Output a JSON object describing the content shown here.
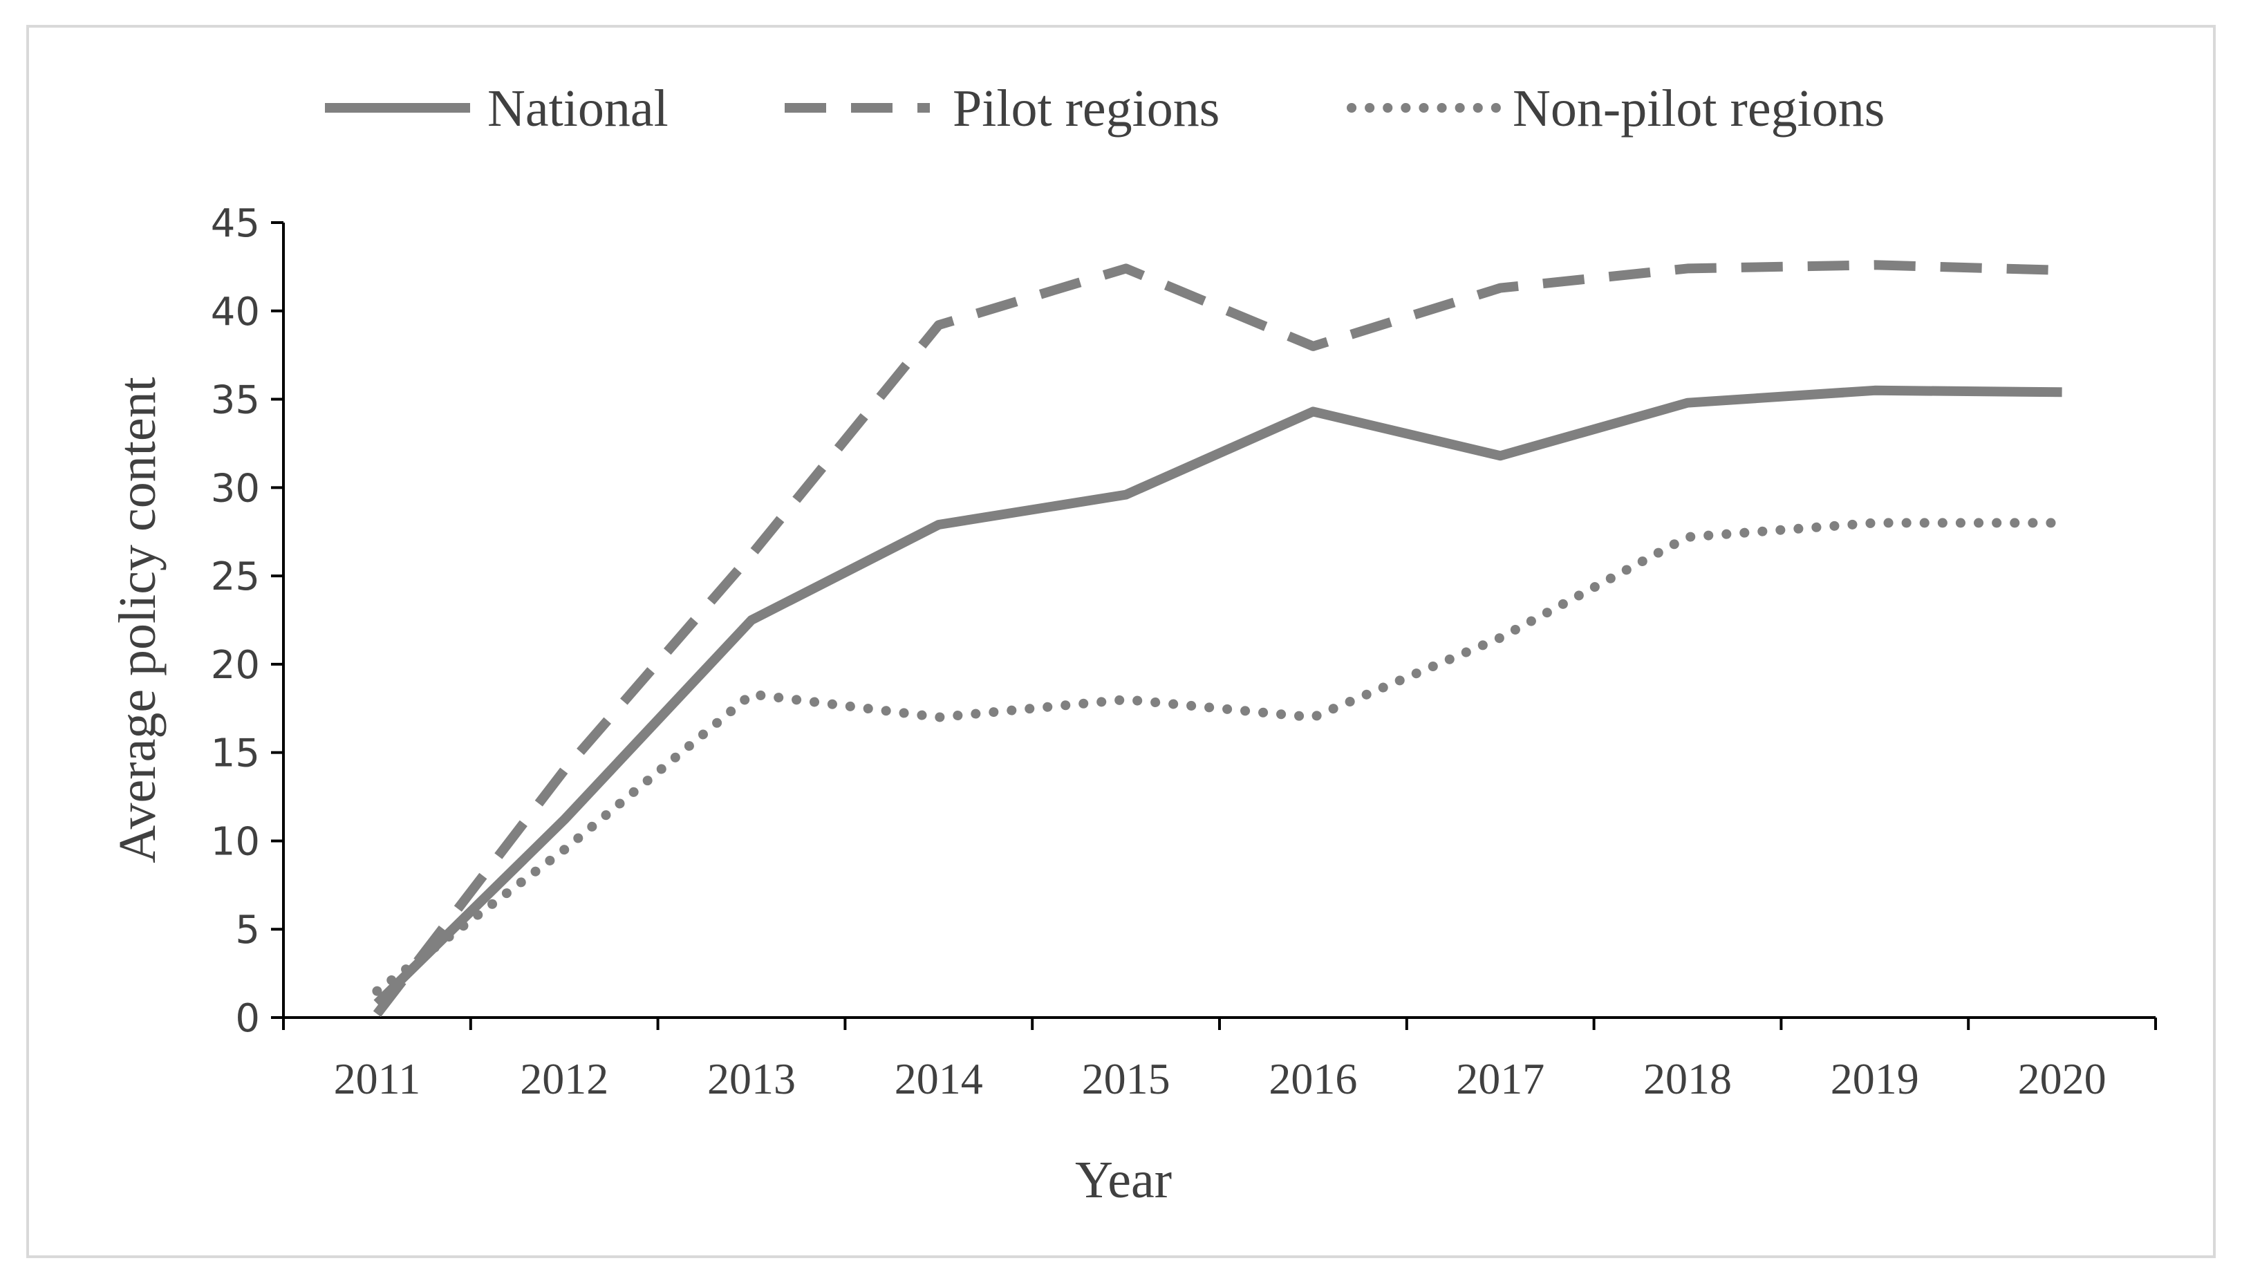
{
  "chart_data": {
    "type": "line",
    "title": "",
    "xlabel": "Year",
    "ylabel": "Average policy content",
    "x": [
      "2011",
      "2012",
      "2013",
      "2014",
      "2015",
      "2016",
      "2017",
      "2018",
      "2019",
      "2020"
    ],
    "ylim": [
      0,
      45
    ],
    "yticks": [
      "0",
      "5",
      "10",
      "15",
      "20",
      "25",
      "30",
      "35",
      "40",
      "45"
    ],
    "grid": false,
    "legend_position": "top",
    "series": [
      {
        "name": "National",
        "style": "solid",
        "color": "#808080",
        "values": [
          0.8,
          11.2,
          22.5,
          27.9,
          29.6,
          34.3,
          31.8,
          34.8,
          35.5,
          35.4
        ]
      },
      {
        "name": "Pilot regions",
        "style": "dashed",
        "color": "#808080",
        "values": [
          0.2,
          14.0,
          26.2,
          39.2,
          42.4,
          38.0,
          41.3,
          42.4,
          42.6,
          42.3
        ]
      },
      {
        "name": "Non-pilot regions",
        "style": "dotted",
        "color": "#808080",
        "values": [
          1.5,
          9.5,
          18.3,
          17.0,
          18.0,
          17.0,
          21.5,
          27.2,
          28.0,
          28.0
        ]
      }
    ]
  }
}
